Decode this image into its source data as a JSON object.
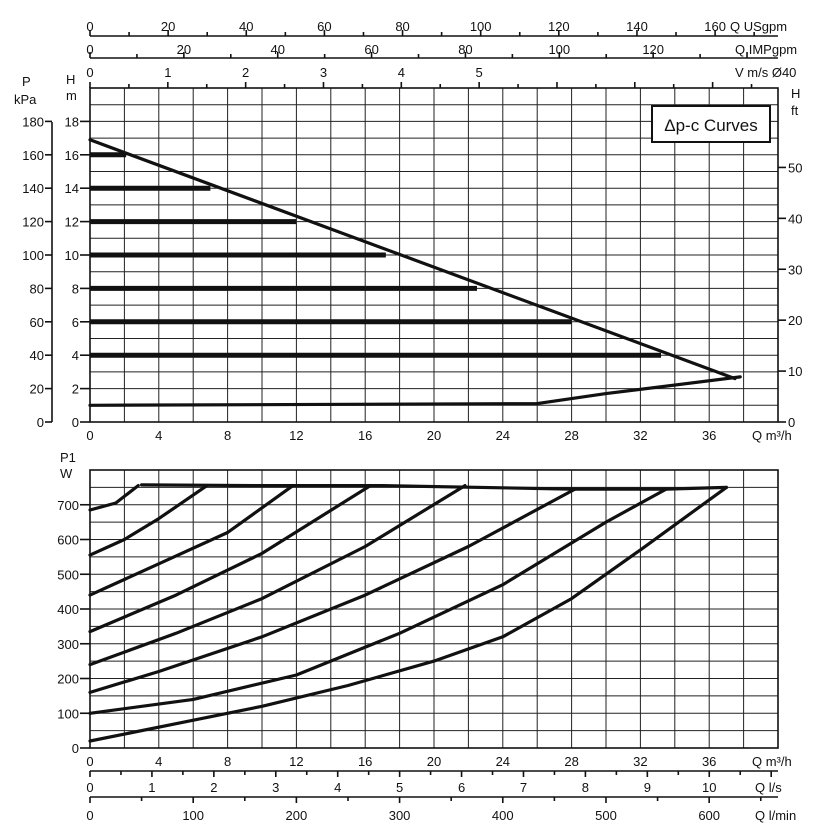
{
  "chart_data": [
    {
      "type": "line",
      "legend": "Δp-c Curves",
      "legend_position": "top-right",
      "grid": true,
      "x": {
        "label": "Q m³/h",
        "ticks": [
          0,
          4,
          8,
          12,
          16,
          20,
          24,
          28,
          32,
          36
        ],
        "range": [
          0,
          40
        ]
      },
      "y_left": {
        "label_unit": "H",
        "label_sub": "m",
        "ticks": [
          0,
          2,
          4,
          6,
          8,
          10,
          12,
          14,
          16,
          18
        ],
        "range": [
          0,
          20
        ]
      },
      "y_left_outer": {
        "label_unit": "P",
        "label_sub": "kPa",
        "ticks": [
          0,
          20,
          40,
          60,
          80,
          100,
          120,
          140,
          160,
          180
        ],
        "range": [
          0,
          200
        ]
      },
      "y_right": {
        "label_unit": "H",
        "label_sub": "ft",
        "ticks": [
          0,
          10,
          20,
          30,
          40,
          50
        ],
        "range": [
          0,
          65.6
        ]
      },
      "top_axes": [
        {
          "label": "Q USgpm",
          "ticks": [
            0,
            20,
            40,
            60,
            80,
            100,
            120,
            140,
            160
          ],
          "range": [
            0,
            176.1
          ]
        },
        {
          "label": "Q IMPgpm",
          "ticks": [
            0,
            20,
            40,
            60,
            80,
            100,
            120
          ],
          "range": [
            0,
            146.6
          ]
        },
        {
          "label": "V m/s Ø40",
          "ticks": [
            0,
            1,
            2,
            3,
            4,
            5
          ],
          "range": [
            0,
            8.84
          ]
        }
      ],
      "series": [
        {
          "x": [
            0,
            37.5
          ],
          "y": [
            16.9,
            2.6
          ]
        },
        {
          "x": [
            0,
            26,
            30,
            37.8
          ],
          "y": [
            1.0,
            1.1,
            1.7,
            2.7
          ]
        }
      ],
      "setpoint_levels": [
        {
          "head": 4,
          "x_end": 33.2
        },
        {
          "head": 6,
          "x_end": 28.0
        },
        {
          "head": 8,
          "x_end": 22.5
        },
        {
          "head": 10,
          "x_end": 17.2
        },
        {
          "head": 12,
          "x_end": 12.0
        },
        {
          "head": 14,
          "x_end": 7.0
        },
        {
          "head": 16,
          "x_end": 2.1
        }
      ]
    },
    {
      "type": "line",
      "grid": true,
      "x": {
        "label": "Q m³/h",
        "ticks": [
          0,
          4,
          8,
          12,
          16,
          20,
          24,
          28,
          32,
          36
        ],
        "range": [
          0,
          40
        ]
      },
      "y": {
        "label_unit": "P1",
        "label_sub": "W",
        "ticks": [
          0,
          100,
          200,
          300,
          400,
          500,
          600,
          700
        ],
        "range": [
          0,
          800
        ]
      },
      "bottom_axes": [
        {
          "label": "Q l/s",
          "ticks": [
            0,
            1,
            2,
            3,
            4,
            5,
            6,
            7,
            8,
            9,
            10
          ],
          "range": [
            0,
            11.11
          ]
        },
        {
          "label": "Q l/min",
          "ticks": [
            0,
            100,
            200,
            300,
            400,
            500,
            600
          ],
          "range": [
            0,
            666.7
          ]
        }
      ],
      "series": [
        {
          "x": [
            0,
            5,
            10,
            15,
            20,
            24,
            28,
            32,
            37
          ],
          "y": [
            20,
            70,
            120,
            180,
            250,
            320,
            430,
            570,
            750
          ]
        },
        {
          "x": [
            37,
            33.5,
            28,
            17,
            10,
            3
          ],
          "y": [
            750,
            745,
            745,
            755,
            755,
            757
          ]
        },
        {
          "x": [
            0,
            6,
            12,
            18,
            24,
            30,
            33.5
          ],
          "y": [
            100,
            140,
            210,
            330,
            470,
            650,
            745
          ]
        },
        {
          "x": [
            0,
            4,
            10,
            16,
            22,
            28.2
          ],
          "y": [
            160,
            220,
            320,
            440,
            580,
            745
          ]
        },
        {
          "x": [
            0,
            5,
            10,
            16,
            21.8
          ],
          "y": [
            240,
            330,
            430,
            580,
            755
          ]
        },
        {
          "x": [
            0,
            5,
            10,
            16.3
          ],
          "y": [
            335,
            440,
            560,
            755
          ]
        },
        {
          "x": [
            0,
            4,
            8,
            11.8
          ],
          "y": [
            440,
            530,
            620,
            755
          ]
        },
        {
          "x": [
            0,
            2,
            4,
            6.8
          ],
          "y": [
            555,
            600,
            660,
            755
          ]
        },
        {
          "x": [
            0,
            1.5,
            2.8
          ],
          "y": [
            685,
            705,
            755
          ]
        }
      ]
    }
  ]
}
